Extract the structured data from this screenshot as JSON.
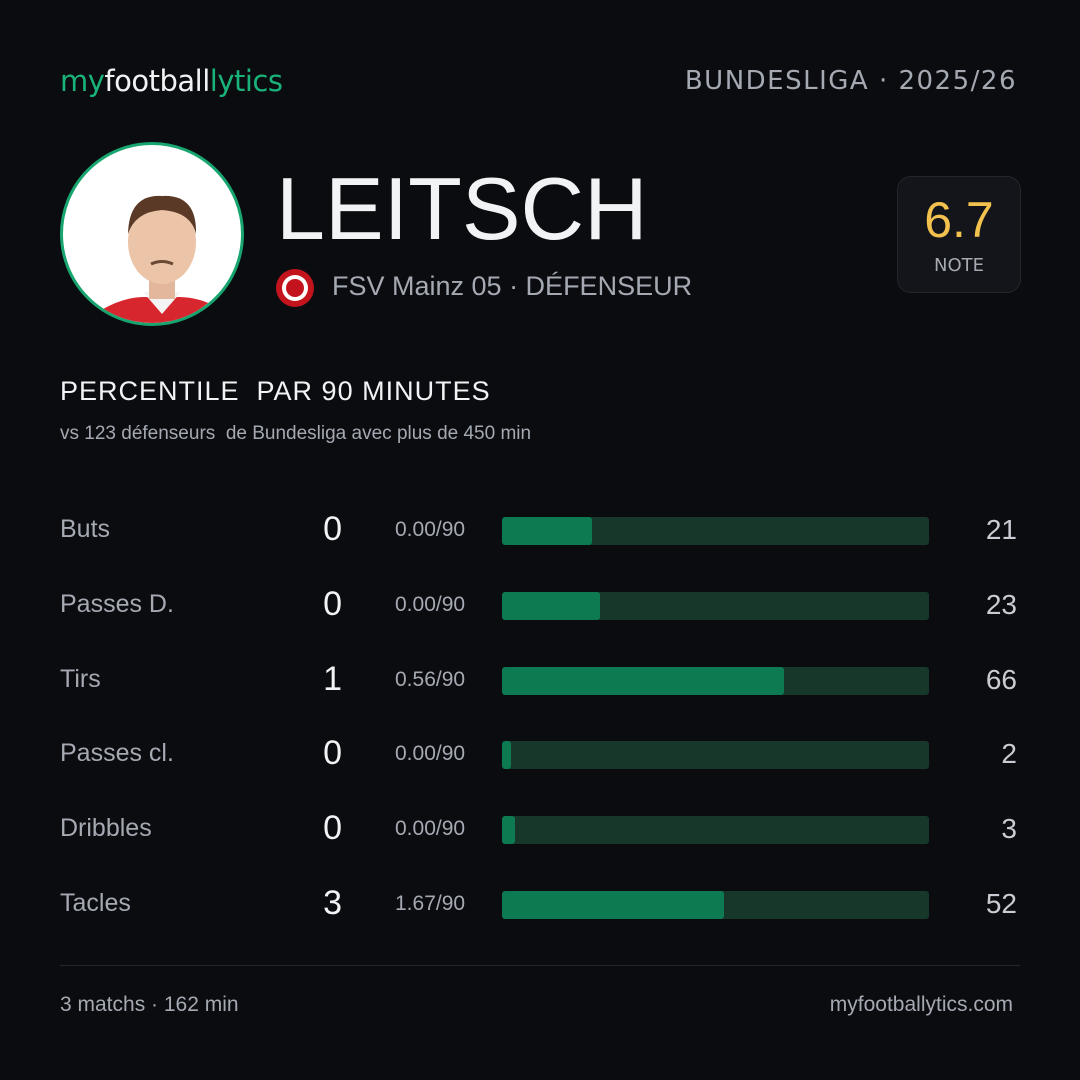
{
  "header": {
    "brand": [
      "my",
      "football",
      "lytics"
    ],
    "league": "BUNDESLIGA · 2025/26"
  },
  "player": {
    "name": "LEITSCH",
    "team": "FSV Mainz 05 · DÉFENSEUR",
    "rating": "6.7",
    "rating_label": "NOTE"
  },
  "section": {
    "title": "PERCENTILE  PAR 90 MINUTES",
    "subtitle": "vs 123 défenseurs  de Bundesliga avec plus de 450 min"
  },
  "stats": {
    "rows": [
      {
        "label": "Buts",
        "total": 0,
        "per90": "0.00/90",
        "percentile": 21
      },
      {
        "label": "Passes D.",
        "total": 0,
        "per90": "0.00/90",
        "percentile": 23
      },
      {
        "label": "Tirs",
        "total": 1,
        "per90": "0.56/90",
        "percentile": 66
      },
      {
        "label": "Passes cl.",
        "total": 0,
        "per90": "0.00/90",
        "percentile": 2
      },
      {
        "label": "Dribbles",
        "total": 0,
        "per90": "0.00/90",
        "percentile": 3
      },
      {
        "label": "Tacles",
        "total": 3,
        "per90": "1.67/90",
        "percentile": 52
      }
    ]
  },
  "footer": {
    "summary": "3 matchs · 162 min",
    "site": "myfootballytics.com"
  }
}
